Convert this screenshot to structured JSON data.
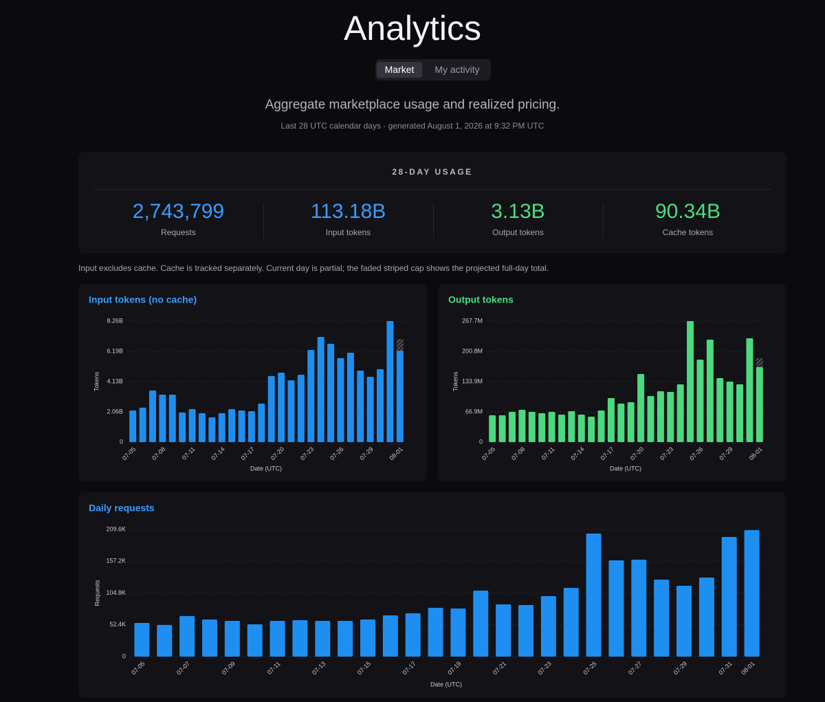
{
  "header": {
    "title": "Analytics",
    "tabs": [
      "Market",
      "My activity"
    ],
    "subtitle": "Aggregate marketplace usage and realized pricing.",
    "meta": "Last 28 UTC calendar days · generated August 1, 2026 at 9:32 PM UTC"
  },
  "usage": {
    "heading": "28-DAY USAGE",
    "stats": [
      {
        "value": "2,743,799",
        "label": "Requests",
        "color": "#3b9cff"
      },
      {
        "value": "113.18B",
        "label": "Input tokens",
        "color": "#3b9cff"
      },
      {
        "value": "3.13B",
        "label": "Output tokens",
        "color": "#4ade80"
      },
      {
        "value": "90.34B",
        "label": "Cache tokens",
        "color": "#4ade80"
      }
    ]
  },
  "note": "Input excludes cache. Cache is tracked separately. Current day is partial; the faded striped cap shows the projected full-day total.",
  "chart_data": [
    {
      "type": "bar",
      "title": "Input tokens (no cache)",
      "title_color": "#3b9cff",
      "x_label": "Date (UTC)",
      "y_label": "Tokens",
      "categories": [
        "07-05",
        null,
        null,
        "07-08",
        null,
        null,
        "07-11",
        null,
        null,
        "07-14",
        null,
        null,
        "07-17",
        null,
        null,
        "07-20",
        null,
        null,
        "07-23",
        null,
        null,
        "07-26",
        null,
        null,
        "07-29",
        null,
        null,
        "08-01"
      ],
      "values": [
        2.16,
        2.35,
        3.52,
        3.24,
        3.24,
        2.02,
        2.25,
        1.97,
        1.69,
        1.97,
        2.25,
        2.16,
        2.11,
        2.63,
        4.51,
        4.74,
        4.22,
        4.6,
        6.29,
        7.18,
        6.71,
        5.73,
        6.1,
        4.88,
        4.46,
        4.98,
        8.26,
        6.24
      ],
      "projected": 7.04,
      "color": "#1e8ff0",
      "ylim": [
        0,
        8.26
      ],
      "yticks": [
        0,
        {
          "value": 2.06,
          "label": "2.06B"
        },
        {
          "value": 4.13,
          "label": "4.13B"
        },
        {
          "value": 6.19,
          "label": "6.19B"
        },
        {
          "value": 8.26,
          "label": "8.26B"
        }
      ],
      "grid": true
    },
    {
      "type": "bar",
      "title": "Output tokens",
      "title_color": "#4ade80",
      "x_label": "Date (UTC)",
      "y_label": "Tokens",
      "categories": [
        "07-05",
        null,
        null,
        "07-08",
        null,
        null,
        "07-11",
        null,
        null,
        "07-14",
        null,
        null,
        "07-17",
        null,
        null,
        "07-20",
        null,
        null,
        "07-23",
        null,
        null,
        "07-26",
        null,
        null,
        "07-29",
        null,
        null,
        "08-01"
      ],
      "values": [
        59.3,
        59.3,
        66.9,
        71.5,
        66.9,
        63.9,
        66.9,
        60.8,
        68.4,
        60.8,
        56.3,
        70.0,
        97.3,
        85.2,
        88.2,
        150.6,
        101.9,
        112.6,
        111.0,
        127.8,
        267.7,
        182.5,
        226.6,
        141.5,
        133.9,
        127.8,
        229.7,
        165.8
      ],
      "projected": 185.6,
      "color": "#4cd97f",
      "ylim": [
        0,
        267.7
      ],
      "yticks": [
        0,
        {
          "value": 66.9,
          "label": "66.9M"
        },
        {
          "value": 133.9,
          "label": "133.9M"
        },
        {
          "value": 200.8,
          "label": "200.8M"
        },
        {
          "value": 267.7,
          "label": "267.7M"
        }
      ],
      "grid": true
    },
    {
      "type": "bar",
      "title": "Daily requests",
      "title_color": "#3b9cff",
      "x_label": "Date (UTC)",
      "y_label": "Requests",
      "categories": [
        "07-05",
        null,
        "07-07",
        null,
        "07-09",
        null,
        "07-11",
        null,
        "07-13",
        null,
        "07-15",
        null,
        "07-17",
        null,
        "07-19",
        null,
        "07-21",
        null,
        "07-23",
        null,
        "07-25",
        null,
        "07-27",
        null,
        "07-29",
        null,
        "07-31",
        "08-01"
      ],
      "values": [
        55.5,
        52.1,
        66.9,
        61.2,
        58.9,
        53.3,
        58.9,
        60.1,
        58.9,
        58.9,
        61.2,
        68.0,
        71.4,
        80.5,
        79.3,
        108.8,
        86.1,
        85.0,
        99.7,
        113.3,
        202.8,
        158.6,
        159.8,
        126.9,
        116.7,
        130.3,
        197.1,
        208.5
      ],
      "color": "#1e8ff0",
      "ylim": [
        0,
        209.6
      ],
      "yticks": [
        0,
        {
          "value": 52.4,
          "label": "52.4K"
        },
        {
          "value": 104.8,
          "label": "104.8K"
        },
        {
          "value": 157.2,
          "label": "157.2K"
        },
        {
          "value": 209.6,
          "label": "209.6K"
        }
      ],
      "grid": true
    }
  ]
}
